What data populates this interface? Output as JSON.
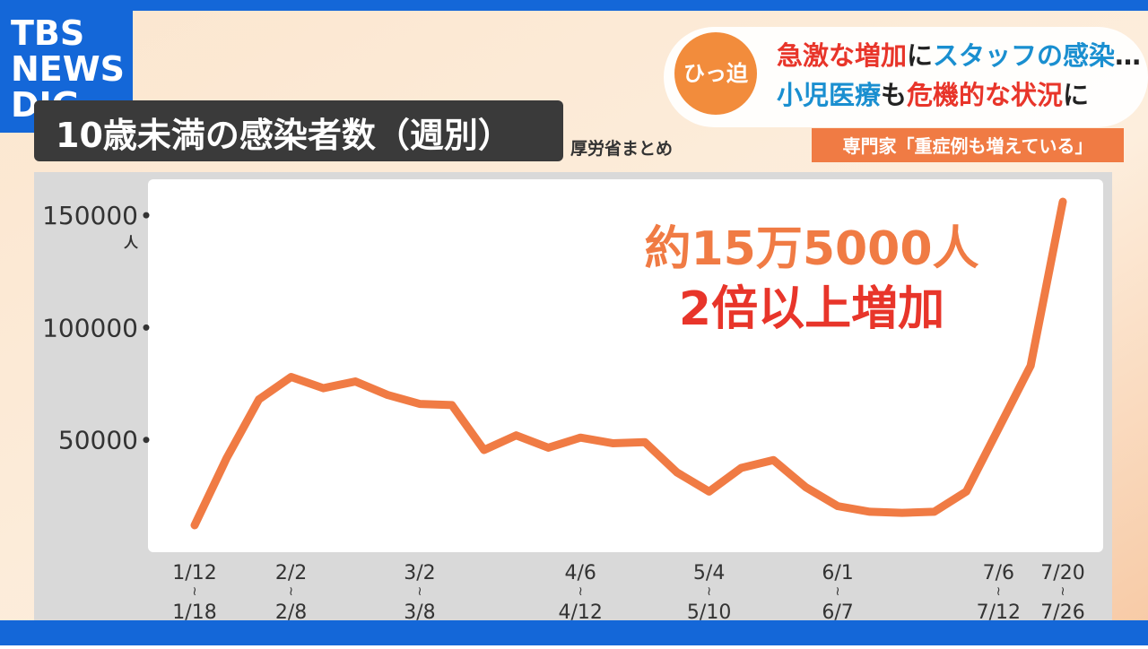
{
  "logo": [
    "TBS",
    "NEWS",
    "DIG"
  ],
  "banner": {
    "tag": "ひっ迫",
    "line1": [
      {
        "text": "急激な増加",
        "color": "#e8352a"
      },
      {
        "text": "に",
        "color": "#222222"
      },
      {
        "text": "スタッフの感染",
        "color": "#1a8fd0"
      },
      {
        "text": "…",
        "color": "#222222"
      }
    ],
    "line2": [
      {
        "text": "小児医療",
        "color": "#1a8fd0"
      },
      {
        "text": "も",
        "color": "#222222"
      },
      {
        "text": "危機的な状況",
        "color": "#e8352a"
      },
      {
        "text": "に",
        "color": "#222222"
      }
    ],
    "sub": "専門家「重症例も増えている」"
  },
  "chart_data": {
    "type": "line",
    "title": "10歳未満の感染者数（週別）",
    "source": "厚労省まとめ",
    "y_unit": "人",
    "annotations": [
      "約15万5000人",
      "2倍以上増加"
    ],
    "categories": [
      [
        "1/12",
        "≀",
        "1/18"
      ],
      null,
      null,
      [
        "2/2",
        "≀",
        "2/8"
      ],
      null,
      null,
      null,
      [
        "3/2",
        "≀",
        "3/8"
      ],
      null,
      null,
      null,
      null,
      [
        "4/6",
        "≀",
        "4/12"
      ],
      null,
      null,
      null,
      [
        "5/4",
        "≀",
        "5/10"
      ],
      null,
      null,
      null,
      [
        "6/1",
        "≀",
        "6/7"
      ],
      null,
      null,
      null,
      null,
      [
        "7/6",
        "≀",
        "7/12"
      ],
      null,
      [
        "7/20",
        "≀",
        "7/26"
      ]
    ],
    "values": [
      12000,
      42000,
      68000,
      78000,
      73000,
      76000,
      70000,
      66000,
      65500,
      45500,
      52000,
      46500,
      51000,
      48500,
      49000,
      35500,
      27000,
      37500,
      41000,
      29000,
      20500,
      18000,
      17500,
      18000,
      27000,
      55000,
      83000,
      156000
    ],
    "color": "#f07b44",
    "ylim": [
      0,
      166000
    ],
    "yticks": [
      50000,
      100000,
      150000
    ]
  }
}
